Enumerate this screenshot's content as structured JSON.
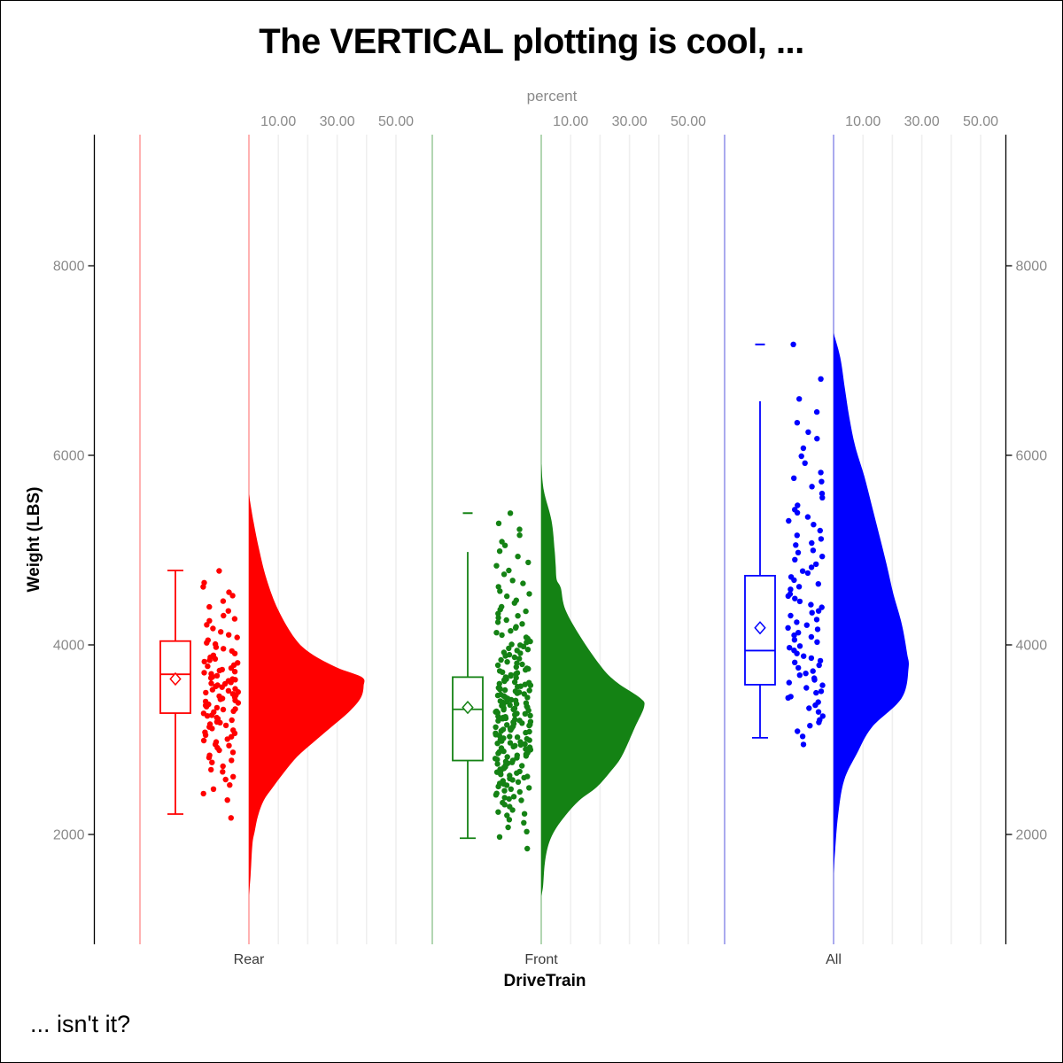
{
  "window": {
    "background": "#ffffff",
    "frame_color": "#000000"
  },
  "chart_data": {
    "type": "raincloud",
    "orientation": "vertical",
    "title": "The VERTICAL plotting is cool, ...",
    "footnote": "... isn't it?",
    "top_axis": {
      "label": "percent",
      "tick_labels": [
        "10.00",
        "30.00",
        "50.00"
      ],
      "tick_values": [
        10,
        30,
        50
      ],
      "grid_values": [
        10,
        20,
        30,
        40,
        50
      ]
    },
    "y_axis": {
      "label": "Weight (LBS)",
      "tick_labels": [
        "2000",
        "4000",
        "6000",
        "8000"
      ],
      "tick_values": [
        2000,
        4000,
        6000,
        8000
      ],
      "range": [
        850,
        9400
      ]
    },
    "x_axis": {
      "label": "DriveTrain",
      "categories": [
        "Rear",
        "Front",
        "All"
      ]
    },
    "style": {
      "grid_color": "#EFEFEF",
      "axis_color": "#000000",
      "tick_label_color": "#8A8A8A",
      "category_label_color": "#3B3B3B",
      "box_fill": "#FFFFFF"
    },
    "groups": [
      {
        "name": "Rear",
        "color": "#FF0000",
        "pale_color": "#FFB2B2",
        "n_points": 110,
        "data_min": 2175,
        "data_max": 4780,
        "box": {
          "whisker_low": 2215,
          "q1": 3280,
          "median": 3690,
          "mean": 3640,
          "q3": 4040,
          "whisker_high": 4785,
          "whisker_high_cap": true
        },
        "max_marker": null,
        "violin_peak_percent": 39,
        "violin_profile": [
          [
            5590,
            0
          ],
          [
            5300,
            0.04
          ],
          [
            5000,
            0.09
          ],
          [
            4690,
            0.155
          ],
          [
            4370,
            0.255
          ],
          [
            4070,
            0.4
          ],
          [
            3910,
            0.54
          ],
          [
            3760,
            0.77
          ],
          [
            3660,
            0.985
          ],
          [
            3570,
            1.0
          ],
          [
            3440,
            0.975
          ],
          [
            3290,
            0.87
          ],
          [
            3130,
            0.715
          ],
          [
            2970,
            0.56
          ],
          [
            2820,
            0.42
          ],
          [
            2660,
            0.31
          ],
          [
            2500,
            0.21
          ],
          [
            2360,
            0.13
          ],
          [
            2200,
            0.08
          ],
          [
            2030,
            0.05
          ],
          [
            1890,
            0.03
          ],
          [
            1570,
            0.015
          ],
          [
            1360,
            0
          ]
        ]
      },
      {
        "name": "Front",
        "color": "#148214",
        "pale_color": "#B2D6B2",
        "n_points": 226,
        "data_min": 1850,
        "data_max": 5390,
        "box": {
          "whisker_low": 1960,
          "q1": 2780,
          "median": 3320,
          "mean": 3340,
          "q3": 3660,
          "whisker_high": 4980,
          "whisker_high_cap": false
        },
        "max_marker": 5390,
        "violin_peak_percent": 35,
        "violin_profile": [
          [
            5910,
            0
          ],
          [
            5630,
            0.025
          ],
          [
            5310,
            0.1
          ],
          [
            5000,
            0.13
          ],
          [
            4840,
            0.14
          ],
          [
            4690,
            0.15
          ],
          [
            4600,
            0.19
          ],
          [
            4370,
            0.235
          ],
          [
            4070,
            0.39
          ],
          [
            3760,
            0.59
          ],
          [
            3600,
            0.74
          ],
          [
            3440,
            0.96
          ],
          [
            3350,
            1.0
          ],
          [
            3130,
            0.91
          ],
          [
            2820,
            0.78
          ],
          [
            2660,
            0.67
          ],
          [
            2500,
            0.54
          ],
          [
            2360,
            0.37
          ],
          [
            2200,
            0.235
          ],
          [
            2040,
            0.13
          ],
          [
            1890,
            0.07
          ],
          [
            1700,
            0.035
          ],
          [
            1450,
            0.017
          ],
          [
            1350,
            0
          ]
        ]
      },
      {
        "name": "All",
        "color": "#0000FF",
        "pale_color": "#AAAAEE",
        "n_points": 92,
        "data_min": 2950,
        "data_max": 7170,
        "box": {
          "whisker_low": 3020,
          "q1": 3580,
          "median": 3940,
          "mean": 4180,
          "q3": 4730,
          "whisker_high": 6570,
          "whisker_high_cap": false
        },
        "max_marker": 7170,
        "violin_peak_percent": 25.5,
        "violin_profile": [
          [
            7290,
            0
          ],
          [
            7030,
            0.09
          ],
          [
            6710,
            0.15
          ],
          [
            6400,
            0.21
          ],
          [
            6090,
            0.29
          ],
          [
            5780,
            0.41
          ],
          [
            5470,
            0.51
          ],
          [
            5160,
            0.61
          ],
          [
            4840,
            0.71
          ],
          [
            4530,
            0.8
          ],
          [
            4220,
            0.91
          ],
          [
            3910,
            0.98
          ],
          [
            3760,
            1.0
          ],
          [
            3440,
            0.91
          ],
          [
            3130,
            0.51
          ],
          [
            2850,
            0.31
          ],
          [
            2570,
            0.14
          ],
          [
            2200,
            0.06
          ],
          [
            1820,
            0.02
          ],
          [
            1590,
            0
          ]
        ]
      }
    ]
  }
}
